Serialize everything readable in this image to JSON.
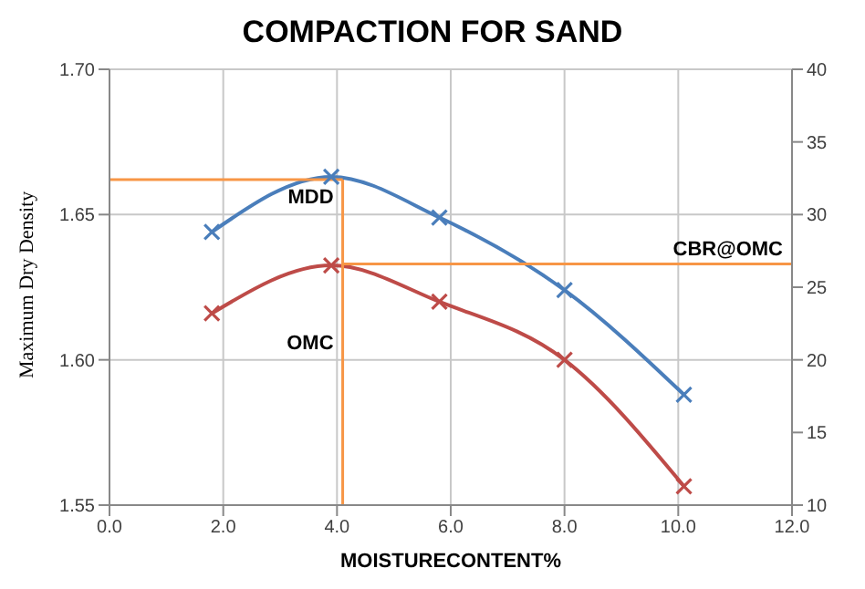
{
  "chart_data": {
    "type": "line",
    "title": "COMPACTION FOR SAND",
    "xlabel": "MOISTURECONTENT%",
    "ylabel": "Maximum Dry Density",
    "series": [
      {
        "color": "#4a7ebb",
        "x": [
          1.8,
          3.9,
          5.8,
          8.0,
          10.1
        ],
        "values": [
          1.644,
          1.663,
          1.649,
          1.624,
          1.588
        ]
      },
      {
        "color": "#be4b48",
        "axis": "y2",
        "x": [
          1.8,
          3.9,
          5.8,
          8.0,
          10.1
        ],
        "values": [
          23.2,
          26.5,
          24.0,
          20.0,
          11.3
        ]
      }
    ],
    "xlim": [
      0,
      12
    ],
    "xticks": [
      {
        "value": 0,
        "label": "0.0"
      },
      {
        "value": 2,
        "label": "2.0"
      },
      {
        "value": 4,
        "label": "4.0"
      },
      {
        "value": 6,
        "label": "6.0"
      },
      {
        "value": 8,
        "label": "8.0"
      },
      {
        "value": 10,
        "label": "10.0"
      },
      {
        "value": 12,
        "label": "12.0"
      }
    ],
    "ylim": [
      1.55,
      1.7
    ],
    "yticks": [
      1.55,
      {
        "value": 1.6,
        "label": "1.60"
      },
      1.65,
      {
        "value": 1.7,
        "label": "1.70"
      }
    ],
    "y2lim": [
      10,
      40
    ],
    "y2ticks": [
      10,
      15,
      20,
      25,
      30,
      35,
      40
    ],
    "ref_lines": [
      {
        "axis": "y",
        "value": 1.662,
        "label": "MDD",
        "color": "#f79646"
      },
      {
        "axis": "x",
        "value": 4.1,
        "label": "OMC",
        "color": "#f79646"
      },
      {
        "axis": "y2",
        "value": 26.6,
        "label": "CBR@OMC",
        "color": "#f79646"
      }
    ],
    "grid": true,
    "marker": "cross",
    "line_style": "solid"
  }
}
